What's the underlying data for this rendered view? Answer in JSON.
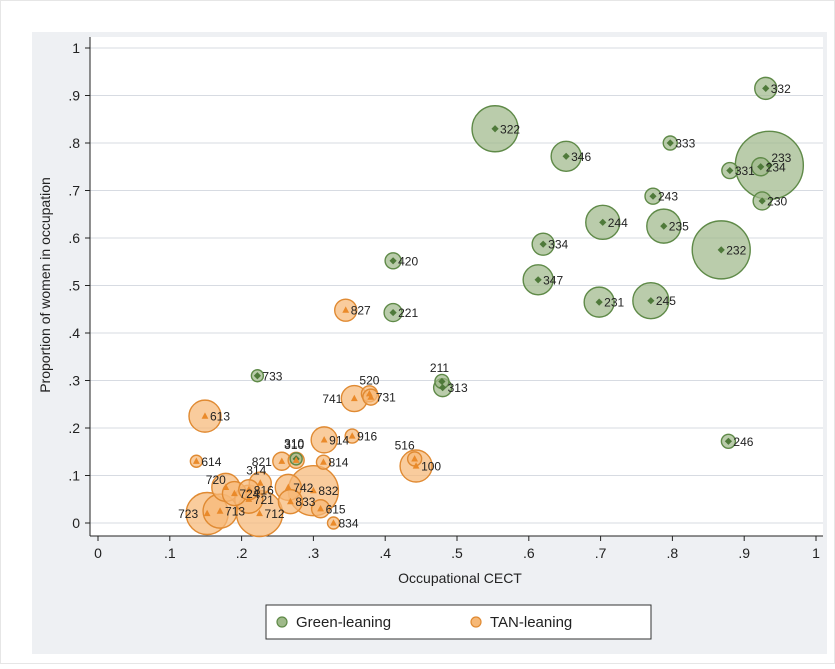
{
  "chart_data": {
    "type": "scatter",
    "xlabel": "Occupational CECT",
    "ylabel": "Proportion of women in occupation",
    "xlim": [
      0,
      1
    ],
    "ylim": [
      0,
      1
    ],
    "xticks": [
      {
        "value": 0,
        "label": "0"
      },
      {
        "value": 0.1,
        "label": ".1"
      },
      {
        "value": 0.2,
        "label": ".2"
      },
      {
        "value": 0.3,
        "label": ".3"
      },
      {
        "value": 0.4,
        "label": ".4"
      },
      {
        "value": 0.5,
        "label": ".5"
      },
      {
        "value": 0.6,
        "label": ".6"
      },
      {
        "value": 0.7,
        "label": ".7"
      },
      {
        "value": 0.8,
        "label": ".8"
      },
      {
        "value": 0.9,
        "label": ".9"
      },
      {
        "value": 1,
        "label": "1"
      }
    ],
    "yticks": [
      {
        "value": 0,
        "label": "0"
      },
      {
        "value": 0.1,
        "label": ".1"
      },
      {
        "value": 0.2,
        "label": ".2"
      },
      {
        "value": 0.3,
        "label": ".3"
      },
      {
        "value": 0.4,
        "label": ".4"
      },
      {
        "value": 0.5,
        "label": ".5"
      },
      {
        "value": 0.6,
        "label": ".6"
      },
      {
        "value": 0.7,
        "label": ".7"
      },
      {
        "value": 0.8,
        "label": ".8"
      },
      {
        "value": 0.9,
        "label": ".9"
      },
      {
        "value": 1,
        "label": "1"
      }
    ],
    "grid": true,
    "legend_position": "bottom",
    "colors": {
      "green_fill": "#9fb98a",
      "green_edge": "#5f8a48",
      "green_marker": "#4f7a3a",
      "tan_fill": "#f6b877",
      "tan_edge": "#e08a32",
      "tan_marker": "#ea8a2a",
      "panel_bg": "#eef0f3",
      "grid": "#d7dbe2"
    },
    "series": [
      {
        "name": "Green-leaning",
        "marker": "diamond",
        "points": [
          {
            "label": "332",
            "x": 0.93,
            "y": 0.915,
            "r": 11
          },
          {
            "label": "322",
            "x": 0.553,
            "y": 0.83,
            "r": 23
          },
          {
            "label": "333",
            "x": 0.797,
            "y": 0.8,
            "r": 7
          },
          {
            "label": "346",
            "x": 0.652,
            "y": 0.772,
            "r": 15
          },
          {
            "label": "233",
            "x": 0.935,
            "y": 0.753,
            "r": 34
          },
          {
            "label": "234",
            "x": 0.923,
            "y": 0.75,
            "r": 9
          },
          {
            "label": "331",
            "x": 0.88,
            "y": 0.742,
            "r": 8
          },
          {
            "label": "243",
            "x": 0.773,
            "y": 0.688,
            "r": 8
          },
          {
            "label": "230",
            "x": 0.925,
            "y": 0.678,
            "r": 9
          },
          {
            "label": "244",
            "x": 0.703,
            "y": 0.633,
            "r": 17
          },
          {
            "label": "235",
            "x": 0.788,
            "y": 0.625,
            "r": 17
          },
          {
            "label": "334",
            "x": 0.62,
            "y": 0.587,
            "r": 11
          },
          {
            "label": "232",
            "x": 0.868,
            "y": 0.575,
            "r": 29
          },
          {
            "label": "420",
            "x": 0.411,
            "y": 0.552,
            "r": 8
          },
          {
            "label": "347",
            "x": 0.613,
            "y": 0.512,
            "r": 15
          },
          {
            "label": "231",
            "x": 0.698,
            "y": 0.465,
            "r": 15
          },
          {
            "label": "245",
            "x": 0.77,
            "y": 0.468,
            "r": 18
          },
          {
            "label": "221",
            "x": 0.411,
            "y": 0.443,
            "r": 9
          },
          {
            "label": "733",
            "x": 0.222,
            "y": 0.31,
            "r": 6
          },
          {
            "label": "211",
            "x": 0.479,
            "y": 0.298,
            "r": 7
          },
          {
            "label": "313",
            "x": 0.48,
            "y": 0.285,
            "r": 9
          },
          {
            "label": "246",
            "x": 0.878,
            "y": 0.172,
            "r": 7
          },
          {
            "label": "310",
            "x": 0.276,
            "y": 0.135,
            "r": 6
          }
        ]
      },
      {
        "name": "TAN-leaning",
        "marker": "triangle",
        "points": [
          {
            "label": "827",
            "x": 0.345,
            "y": 0.448,
            "r": 11
          },
          {
            "label": "520",
            "x": 0.378,
            "y": 0.272,
            "r": 8
          },
          {
            "label": "741",
            "x": 0.357,
            "y": 0.262,
            "r": 13
          },
          {
            "label": "731",
            "x": 0.38,
            "y": 0.265,
            "r": 8
          },
          {
            "label": "613",
            "x": 0.149,
            "y": 0.225,
            "r": 16
          },
          {
            "label": "914",
            "x": 0.315,
            "y": 0.175,
            "r": 13
          },
          {
            "label": "916",
            "x": 0.354,
            "y": 0.183,
            "r": 7
          },
          {
            "label": "516",
            "x": 0.441,
            "y": 0.135,
            "r": 7
          },
          {
            "label": "310",
            "x": 0.276,
            "y": 0.132,
            "r": 8
          },
          {
            "label": "821",
            "x": 0.256,
            "y": 0.13,
            "r": 9
          },
          {
            "label": "614",
            "x": 0.137,
            "y": 0.13,
            "r": 6
          },
          {
            "label": "814",
            "x": 0.314,
            "y": 0.128,
            "r": 7
          },
          {
            "label": "100",
            "x": 0.443,
            "y": 0.12,
            "r": 16
          },
          {
            "label": "314",
            "x": 0.226,
            "y": 0.084,
            "r": 11
          },
          {
            "label": "742",
            "x": 0.265,
            "y": 0.075,
            "r": 13
          },
          {
            "label": "832",
            "x": 0.3,
            "y": 0.068,
            "r": 25
          },
          {
            "label": "720",
            "x": 0.178,
            "y": 0.075,
            "r": 14
          },
          {
            "label": "816",
            "x": 0.21,
            "y": 0.07,
            "r": 10
          },
          {
            "label": "724",
            "x": 0.19,
            "y": 0.062,
            "r": 12
          },
          {
            "label": "721",
            "x": 0.21,
            "y": 0.05,
            "r": 14
          },
          {
            "label": "833",
            "x": 0.268,
            "y": 0.045,
            "r": 12
          },
          {
            "label": "615",
            "x": 0.31,
            "y": 0.03,
            "r": 9
          },
          {
            "label": "713",
            "x": 0.17,
            "y": 0.025,
            "r": 17
          },
          {
            "label": "712",
            "x": 0.225,
            "y": 0.02,
            "r": 23
          },
          {
            "label": "723",
            "x": 0.152,
            "y": 0.02,
            "r": 21
          },
          {
            "label": "834",
            "x": 0.328,
            "y": 0.0,
            "r": 6
          }
        ]
      }
    ]
  }
}
